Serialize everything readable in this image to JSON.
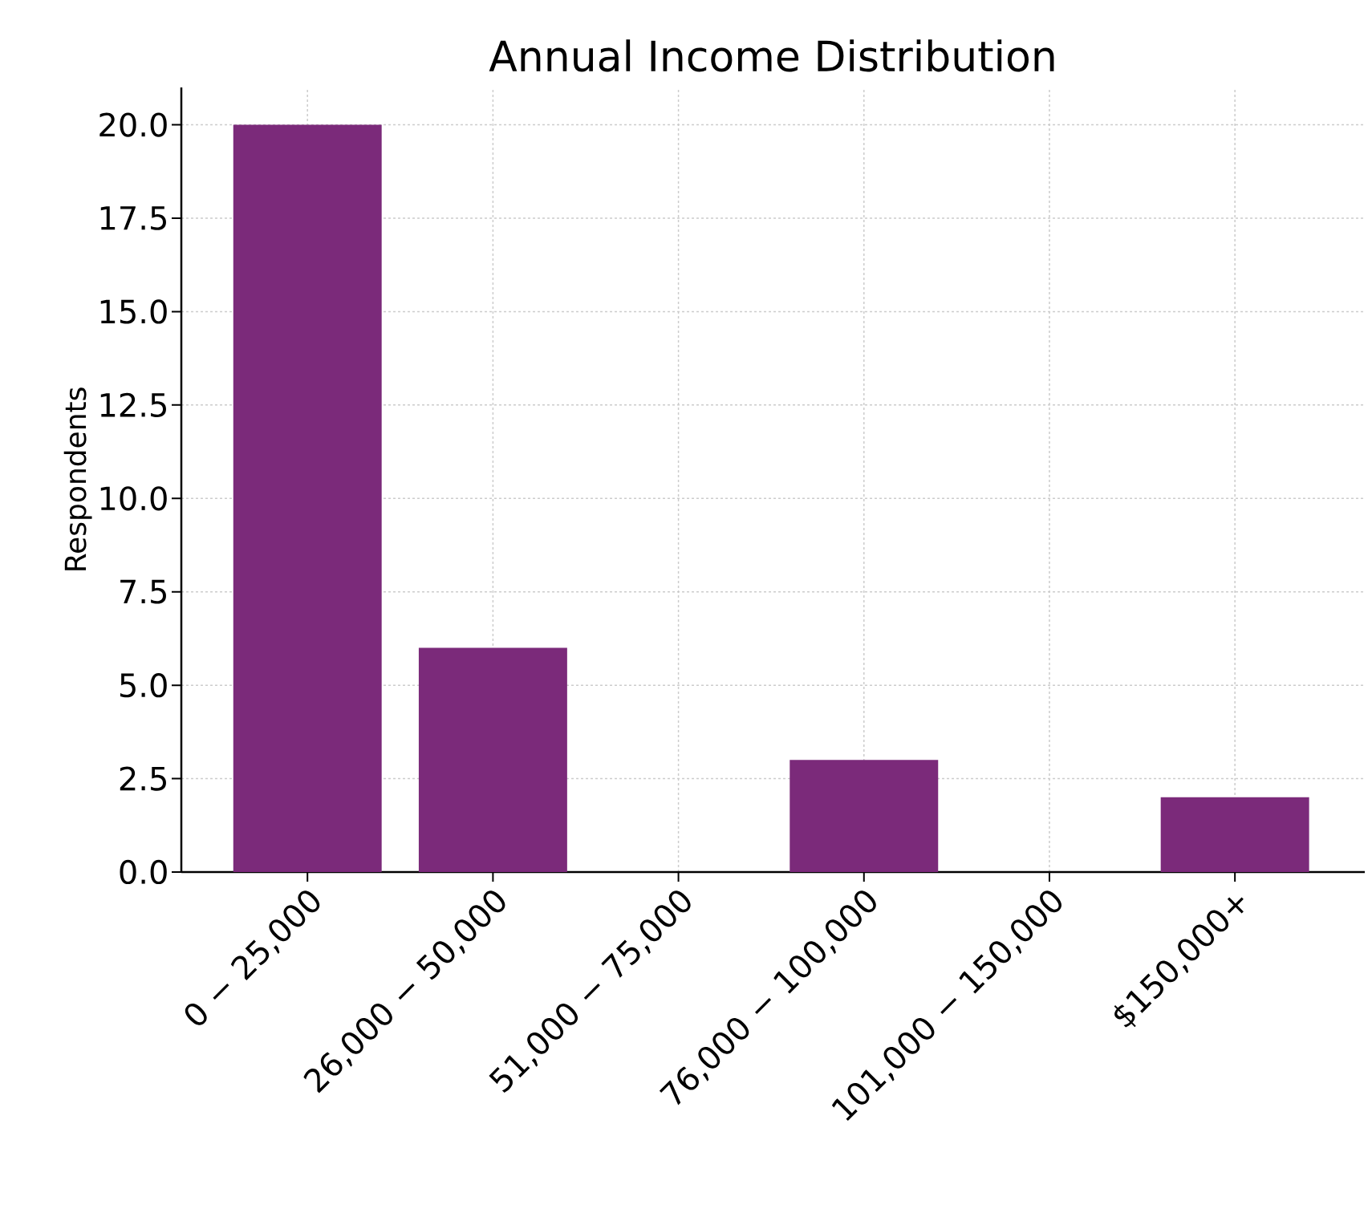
{
  "chart_data": {
    "type": "bar",
    "title": "Annual Income Distribution",
    "ylabel": "Respondents",
    "categories": [
      "0 − 25,000",
      "26,000 − 50,000",
      "51,000 − 75,000",
      "76,000 − 100,000",
      "101,000 − 150,000",
      "$150,000+"
    ],
    "values": [
      20,
      6,
      0,
      3,
      0,
      2
    ],
    "color": "#7b2a7a",
    "ylim": [
      0,
      21
    ],
    "yticks": [
      {
        "value": 0,
        "label": "0.0"
      },
      {
        "value": 2.5,
        "label": "2.5"
      },
      {
        "value": 5,
        "label": "5.0"
      },
      {
        "value": 7.5,
        "label": "7.5"
      },
      {
        "value": 10,
        "label": "10.0"
      },
      {
        "value": 12.5,
        "label": "12.5"
      },
      {
        "value": 15,
        "label": "15.0"
      },
      {
        "value": 17.5,
        "label": "17.5"
      },
      {
        "value": 20,
        "label": "20.0"
      }
    ],
    "grid": true
  }
}
